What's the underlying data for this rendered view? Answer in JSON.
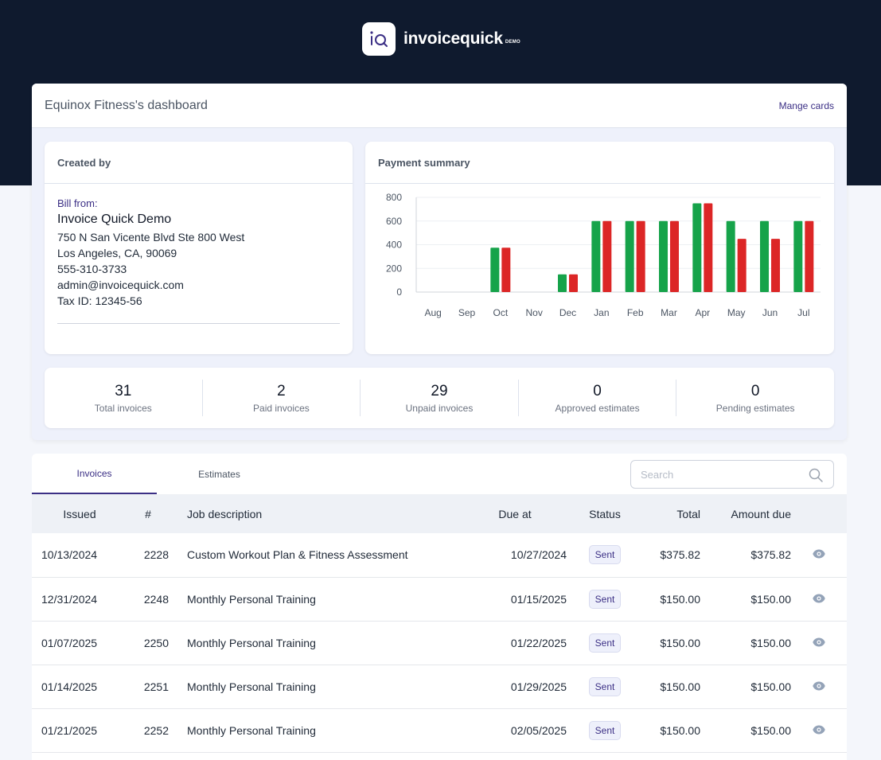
{
  "brand": {
    "name": "invoicequick",
    "tag": "DEMO",
    "logo_text": "iQ"
  },
  "dashboard": {
    "title": "Equinox Fitness's dashboard",
    "manage_link": "Mange cards"
  },
  "created_by": {
    "heading": "Created by",
    "bill_label": "Bill from:",
    "name": "Invoice Quick Demo",
    "address1": "750 N San Vicente Blvd Ste 800 West",
    "address2": "Los Angeles, CA, 90069",
    "phone": "555-310-3733",
    "email": "admin@invoicequick.com",
    "tax": "Tax ID: 12345-56"
  },
  "payment_summary": {
    "heading": "Payment summary"
  },
  "chart_data": {
    "type": "bar",
    "categories": [
      "Aug",
      "Sep",
      "Oct",
      "Nov",
      "Dec",
      "Jan",
      "Feb",
      "Mar",
      "Apr",
      "May",
      "Jun",
      "Jul"
    ],
    "series": [
      {
        "values": [
          0,
          0,
          375,
          0,
          150,
          600,
          600,
          600,
          750,
          600,
          600,
          600
        ],
        "color": "#16a34a"
      },
      {
        "values": [
          0,
          0,
          375,
          0,
          150,
          600,
          600,
          600,
          750,
          450,
          450,
          600
        ],
        "color": "#dc2626"
      }
    ],
    "yticks": [
      "0",
      "200",
      "400",
      "600",
      "800"
    ],
    "ylim": [
      0,
      800
    ],
    "grid": true
  },
  "stats": [
    {
      "value": "31",
      "label": "Total invoices"
    },
    {
      "value": "2",
      "label": "Paid invoices"
    },
    {
      "value": "29",
      "label": "Unpaid invoices"
    },
    {
      "value": "0",
      "label": "Approved estimates"
    },
    {
      "value": "0",
      "label": "Pending estimates"
    }
  ],
  "tabs": {
    "invoices": "Invoices",
    "estimates": "Estimates"
  },
  "search": {
    "placeholder": "Search",
    "value": ""
  },
  "table": {
    "headers": {
      "issued": "Issued",
      "number": "#",
      "job": "Job description",
      "due": "Due at",
      "status": "Status",
      "total": "Total",
      "amount_due": "Amount due"
    },
    "rows": [
      {
        "issued": "10/13/2024",
        "number": "2228",
        "job": "Custom Workout Plan & Fitness Assessment",
        "due": "10/27/2024",
        "status": "Sent",
        "total": "$375.82",
        "amount_due": "$375.82"
      },
      {
        "issued": "12/31/2024",
        "number": "2248",
        "job": "Monthly Personal Training",
        "due": "01/15/2025",
        "status": "Sent",
        "total": "$150.00",
        "amount_due": "$150.00"
      },
      {
        "issued": "01/07/2025",
        "number": "2250",
        "job": "Monthly Personal Training",
        "due": "01/22/2025",
        "status": "Sent",
        "total": "$150.00",
        "amount_due": "$150.00"
      },
      {
        "issued": "01/14/2025",
        "number": "2251",
        "job": "Monthly Personal Training",
        "due": "01/29/2025",
        "status": "Sent",
        "total": "$150.00",
        "amount_due": "$150.00"
      },
      {
        "issued": "01/21/2025",
        "number": "2252",
        "job": "Monthly Personal Training",
        "due": "02/05/2025",
        "status": "Sent",
        "total": "$150.00",
        "amount_due": "$150.00"
      }
    ]
  }
}
